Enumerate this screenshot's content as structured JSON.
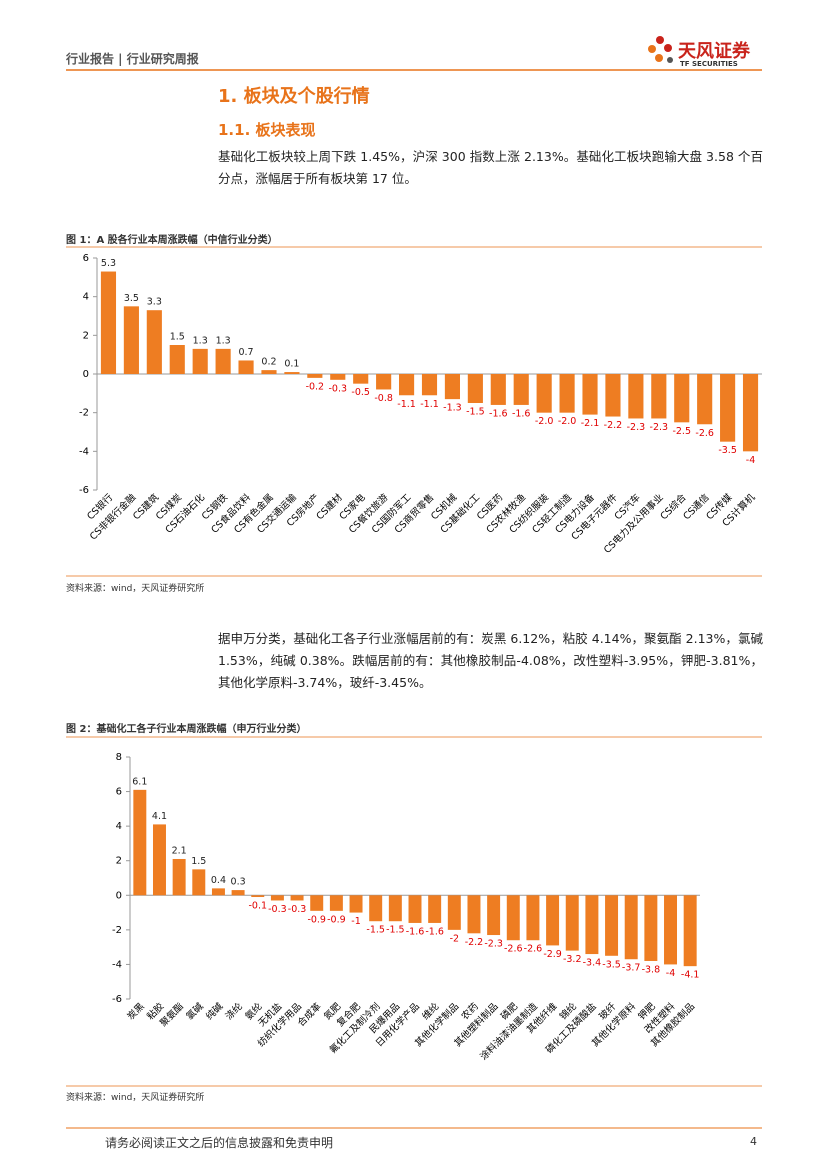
{
  "header": {
    "breadcrumb": "行业报告 | 行业研究周报",
    "logo_name": "天风证券",
    "logo_en": "TF SECURITIES"
  },
  "section_title": "1. 板块及个股行情",
  "subsection_title": "1.1. 板块表现",
  "paragraph1": "基础化工板块较上周下跌 1.45%，沪深 300 指数上涨 2.13%。基础化工板块跑输大盘 3.58 个百分点，涨幅居于所有板块第 17 位。",
  "paragraph2": "据申万分类，基础化工各子行业涨幅居前的有：炭黑 6.12%，粘胶 4.14%，聚氨酯 2.13%，氯碱 1.53%，纯碱 0.38%。跌幅居前的有：其他橡胶制品-4.08%，改性塑料-3.95%，钾肥-3.81%，其他化学原料-3.74%，玻纤-3.45%。",
  "chart_data": [
    {
      "type": "bar",
      "title": "图 1：A 股各行业本周涨跌幅（中信行业分类）",
      "source": "资料来源：wind，天风证券研究所",
      "categories": [
        "CS银行",
        "CS非银行金融",
        "CS建筑",
        "CS煤炭",
        "CS石油石化",
        "CS钢铁",
        "CS食品饮料",
        "CS有色金属",
        "CS交通运输",
        "CS房地产",
        "CS建材",
        "CS家电",
        "CS餐饮旅游",
        "CS国防军工",
        "CS商贸零售",
        "CS机械",
        "CS基础化工",
        "CS医药",
        "CS农林牧渔",
        "CS纺织服装",
        "CS轻工制造",
        "CS电力设备",
        "CS电子元器件",
        "CS汽车",
        "CS电力及公用事业",
        "CS综合",
        "CS通信",
        "CS传媒",
        "CS计算机"
      ],
      "values": [
        5.3,
        3.5,
        3.3,
        1.5,
        1.3,
        1.3,
        0.7,
        0.2,
        0.1,
        -0.2,
        -0.3,
        -0.5,
        -0.8,
        -1.1,
        -1.1,
        -1.3,
        -1.5,
        -1.6,
        -1.6,
        -2.0,
        -2.0,
        -2.1,
        -2.2,
        -2.3,
        -2.3,
        -2.5,
        -2.6,
        -3.5,
        -4
      ],
      "value_labels": [
        "5.3",
        "3.5",
        "3.3",
        "1.5",
        "1.3",
        "1.3",
        "0.7",
        "0.2",
        "0.1",
        "-0.2",
        "-0.3",
        "-0.5",
        "-0.8",
        "-1.1",
        "-1.1",
        "-1.3",
        "-1.5",
        "-1.6",
        "-1.6",
        "-2.0",
        "-2.0",
        "-2.1",
        "-2.2",
        "-2.3",
        "-2.3",
        "-2.5",
        "-2.6",
        "-3.5",
        "-4"
      ],
      "color": "#ee7d22",
      "negative_label_color": "#e00000",
      "ylim": [
        -6,
        6
      ],
      "yticks": [
        -6,
        -4,
        -2,
        0,
        2,
        4,
        6
      ],
      "grid": false
    },
    {
      "type": "bar",
      "title": "图 2：基础化工各子行业本周涨跌幅（申万行业分类）",
      "source": "资料来源：wind，天风证券研究所",
      "categories": [
        "炭黑",
        "粘胶",
        "聚氨酯",
        "氯碱",
        "纯碱",
        "涤纶",
        "氨纶",
        "无机盐",
        "纺织化学用品",
        "合成革",
        "氮肥",
        "复合肥",
        "氟化工及制冷剂",
        "民爆用品",
        "日用化学产品",
        "维纶",
        "其他化学制品",
        "农药",
        "其他塑料制品",
        "磷肥",
        "涂料油漆油墨制造",
        "其他纤维",
        "锦纶",
        "磷化工及磷酸盐",
        "玻纤",
        "其他化学原料",
        "钾肥",
        "改性塑料",
        "其他橡胶制品"
      ],
      "values": [
        6.1,
        4.1,
        2.1,
        1.5,
        0.4,
        0.3,
        -0.1,
        -0.3,
        -0.3,
        -0.9,
        -0.9,
        -1.0,
        -1.5,
        -1.5,
        -1.6,
        -1.6,
        -2.0,
        -2.2,
        -2.3,
        -2.6,
        -2.6,
        -2.9,
        -3.2,
        -3.4,
        -3.5,
        -3.7,
        -3.8,
        -4.0,
        -4.1
      ],
      "color": "#ee7d22",
      "negative_label_color": "#e00000",
      "ylim": [
        -6,
        8
      ],
      "yticks": [
        -6,
        -4,
        -2,
        0,
        2,
        4,
        6,
        8
      ],
      "grid": false
    }
  ],
  "footer": {
    "disclaimer": "请务必阅读正文之后的信息披露和免责申明",
    "page": "4"
  }
}
